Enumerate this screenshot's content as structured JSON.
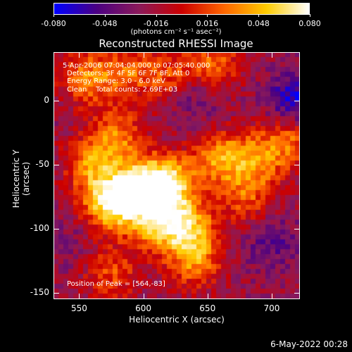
{
  "chart_data": {
    "type": "heatmap",
    "title": "Reconstructed RHESSI Image",
    "xlabel": "Heliocentric X (arcsec)",
    "ylabel": "Heliocentric Y (arcsec)",
    "xlim": [
      530,
      722
    ],
    "ylim": [
      -155,
      38
    ],
    "xticks": [
      "550",
      "600",
      "650",
      "700"
    ],
    "xtick_values": [
      550,
      600,
      650,
      700
    ],
    "yticks": [
      "0",
      "-50",
      "-100",
      "-150"
    ],
    "ytick_values": [
      0,
      -50,
      -100,
      -150
    ],
    "colorbar": {
      "ticks": [
        "-0.080",
        "-0.048",
        "-0.016",
        "0.016",
        "0.048",
        "0.080"
      ],
      "tick_values": [
        -0.08,
        -0.048,
        -0.016,
        0.016,
        0.048,
        0.08
      ],
      "range": [
        -0.08,
        0.08
      ],
      "label": "(photons cm⁻² s⁻¹ asec⁻²)",
      "colors": [
        "#0000ff",
        "#4b0082",
        "#8b1a5a",
        "#cc0000",
        "#ff6600",
        "#ffcc00",
        "#ffffff"
      ]
    },
    "annotations": [
      "5-Apr-2006 07:04:04.000 to 07:05:40.000",
      "Detectors: 3F 4F 5F 6F 7F 8F, Att 0",
      "Energy Range: 3.0 - 6.0 keV",
      "Clean    Total counts: 2.69E+03"
    ],
    "peak_label": "Position of Peak = [564,-83]",
    "peak": [
      564,
      -83
    ],
    "features": [
      {
        "x": 575,
        "y": -80,
        "v": 0.075
      },
      {
        "x": 600,
        "y": -68,
        "v": 0.065
      },
      {
        "x": 620,
        "y": -65,
        "v": 0.06
      },
      {
        "x": 610,
        "y": -95,
        "v": 0.045
      },
      {
        "x": 635,
        "y": -100,
        "v": 0.05
      },
      {
        "x": 560,
        "y": -50,
        "v": 0.035
      },
      {
        "x": 580,
        "y": -28,
        "v": 0.03
      },
      {
        "x": 555,
        "y": 18,
        "v": 0.03
      },
      {
        "x": 585,
        "y": 22,
        "v": 0.025
      },
      {
        "x": 620,
        "y": 20,
        "v": 0.02
      },
      {
        "x": 655,
        "y": 28,
        "v": 0.028
      },
      {
        "x": 660,
        "y": -45,
        "v": 0.04
      },
      {
        "x": 690,
        "y": -45,
        "v": 0.03
      },
      {
        "x": 715,
        "y": -30,
        "v": 0.025
      },
      {
        "x": 640,
        "y": -125,
        "v": 0.03
      },
      {
        "x": 575,
        "y": -135,
        "v": 0.02
      },
      {
        "x": 680,
        "y": -75,
        "v": 0.02
      },
      {
        "x": 718,
        "y": 0,
        "v": -0.07
      },
      {
        "x": 640,
        "y": 5,
        "v": -0.045
      },
      {
        "x": 700,
        "y": -110,
        "v": -0.045
      },
      {
        "x": 545,
        "y": -110,
        "v": -0.03
      }
    ]
  },
  "footer": {
    "date": "6-May-2022 00:28"
  }
}
